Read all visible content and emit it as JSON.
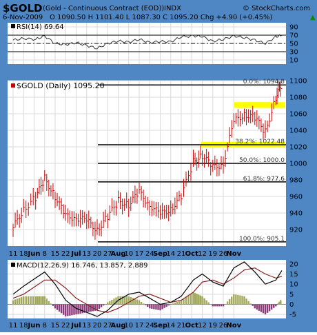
{
  "header": {
    "symbol": "$GOLD",
    "name": "(Gold - Continuous Contract (EOD))",
    "exchange": "INDX",
    "watermark": "© StockCharts.com",
    "date": "6-Nov-2009",
    "quote": "O 1090.50  H 1101.40  L 1087.30  C 1095.20  Chg +4.90 (+0.45%)",
    "quote_arrow": "▲"
  },
  "colors": {
    "frame": "#4f87c4",
    "grid": "#d9d9d9",
    "price_bars": "#cc0000",
    "fib_lines": "#000000",
    "highlight": "#ffff00",
    "macd_line": "#000000",
    "signal_line": "#8b2020",
    "hist_pos": "#a2a85a",
    "hist_neg": "#8a3a78"
  },
  "chart_data": [
    {
      "type": "line",
      "title": "RSI(14) 69.64",
      "ylim": [
        0,
        100
      ],
      "yticks": [
        90,
        70,
        50,
        30,
        10
      ],
      "reference_lines": [
        70,
        50,
        30
      ],
      "x": [
        "2009-05-11",
        "2009-05-18",
        "2009-05-26",
        "2009-06-01",
        "2009-06-08",
        "2009-06-15",
        "2009-06-22",
        "2009-06-29",
        "2009-07-06",
        "2009-07-13",
        "2009-07-20",
        "2009-07-27",
        "2009-08-03",
        "2009-08-10",
        "2009-08-17",
        "2009-08-24",
        "2009-08-31",
        "2009-09-08",
        "2009-09-14",
        "2009-09-21",
        "2009-09-28",
        "2009-10-05",
        "2009-10-12",
        "2009-10-19",
        "2009-10-26",
        "2009-11-02",
        "2009-11-06"
      ],
      "values": [
        58,
        62,
        60,
        68,
        50,
        47,
        52,
        45,
        38,
        50,
        56,
        53,
        60,
        52,
        55,
        54,
        66,
        68,
        67,
        55,
        60,
        68,
        64,
        58,
        50,
        66,
        69.64
      ]
    },
    {
      "type": "ohlc",
      "title": "$GOLD (Daily) 1095.20",
      "ylim": [
        900,
        1100
      ],
      "yticks": [
        1100,
        1080,
        1060,
        1040,
        1020,
        1000,
        980,
        960,
        940,
        920
      ],
      "x_tick_labels": [
        "11",
        "18",
        "Jun",
        "8",
        "15",
        "22",
        "Jul",
        "13",
        "20",
        "27",
        "Aug",
        "10",
        "17",
        "24",
        "Sep",
        "14",
        "21",
        "Oct",
        "12",
        "19",
        "26",
        "Nov"
      ],
      "x": [
        "2009-05-11",
        "2009-05-18",
        "2009-05-26",
        "2009-06-01",
        "2009-06-08",
        "2009-06-15",
        "2009-06-22",
        "2009-06-29",
        "2009-07-06",
        "2009-07-13",
        "2009-07-20",
        "2009-07-27",
        "2009-08-03",
        "2009-08-10",
        "2009-08-17",
        "2009-08-24",
        "2009-08-31",
        "2009-09-08",
        "2009-09-14",
        "2009-09-21",
        "2009-09-28",
        "2009-10-05",
        "2009-10-12",
        "2009-10-19",
        "2009-10-26",
        "2009-11-02",
        "2009-11-06"
      ],
      "close": [
        922,
        945,
        958,
        982,
        960,
        936,
        935,
        930,
        920,
        935,
        955,
        950,
        965,
        950,
        938,
        945,
        960,
        1002,
        1010,
        995,
        1000,
        1050,
        1060,
        1055,
        1038,
        1080,
        1095.2
      ],
      "fibonacci_levels": [
        {
          "label": "0.0%: 1094.8",
          "value": 1094.8
        },
        {
          "label": "38.2%: 1022.48",
          "value": 1022.48
        },
        {
          "label": "50.0%: 1000.0",
          "value": 1000.0
        },
        {
          "label": "61.8%: 977.6",
          "value": 977.6
        },
        {
          "label": "100.0%: 905.1",
          "value": 905.1
        }
      ],
      "highlight_zones": [
        {
          "from": 1067,
          "to": 1074
        },
        {
          "from": 1019,
          "to": 1026
        }
      ]
    },
    {
      "type": "line",
      "title": "MACD(12,26,9) 16.746, 13.857, 2.889",
      "ylim": [
        -7,
        22
      ],
      "yticks": [
        20,
        15,
        10,
        5,
        0,
        -5
      ],
      "series": [
        {
          "name": "MACD(12,26,9)",
          "values": [
            5,
            9,
            13,
            16,
            10,
            2,
            -2,
            -4,
            -6,
            -3,
            2,
            5,
            6,
            3,
            0,
            1,
            4,
            12,
            15,
            11,
            9,
            18,
            21,
            16,
            10,
            12,
            16.746
          ]
        },
        {
          "name": "Signal",
          "values": [
            3,
            5,
            9,
            12,
            12,
            8,
            3,
            0,
            -3,
            -4,
            -2,
            1,
            4,
            5,
            3,
            1,
            2,
            6,
            11,
            12,
            10,
            13,
            17,
            18,
            15,
            13,
            13.857
          ]
        },
        {
          "name": "Histogram",
          "values": [
            2,
            4,
            4,
            4,
            -2,
            -6,
            -5,
            -4,
            -3,
            1,
            4,
            4,
            2,
            -2,
            -3,
            0,
            2,
            6,
            4,
            -1,
            -1,
            5,
            4,
            -2,
            -5,
            -1,
            2.889
          ]
        }
      ]
    }
  ]
}
